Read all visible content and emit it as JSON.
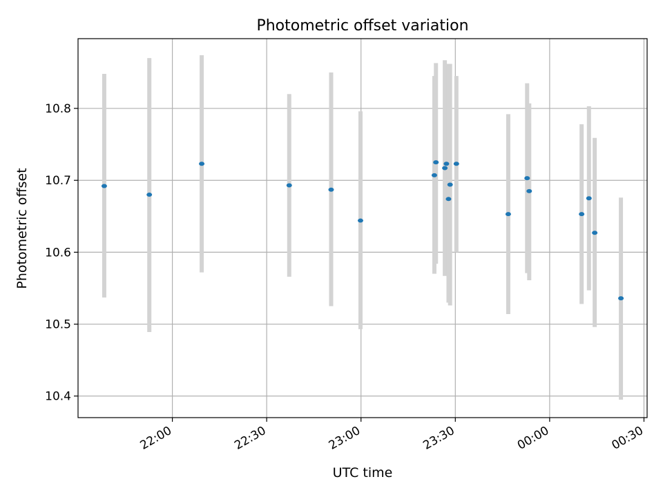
{
  "colors": {
    "point": "#1f77b4",
    "errorbar": "#d3d3d3",
    "grid": "#b0b0b0",
    "frame": "#000000"
  },
  "chart_data": {
    "type": "scatter",
    "title": "Photometric offset variation",
    "xlabel": "UTC time",
    "ylabel": "Photometric offset",
    "grid": true,
    "xlim": [
      "21:30:00",
      "00:31:00"
    ],
    "ylim": [
      10.37,
      10.897
    ],
    "x_ticks": [
      "22:00",
      "22:30",
      "23:00",
      "23:30",
      "00:00",
      "00:30"
    ],
    "y_ticks": [
      "10.4",
      "10.5",
      "10.6",
      "10.7",
      "10.8"
    ],
    "y_tick_values": [
      10.4,
      10.5,
      10.6,
      10.7,
      10.8
    ],
    "points": [
      {
        "time": "21:38:20",
        "y": 10.692,
        "ylo": 10.537,
        "yhi": 10.848
      },
      {
        "time": "21:52:40",
        "y": 10.68,
        "ylo": 10.489,
        "yhi": 10.87
      },
      {
        "time": "22:09:20",
        "y": 10.723,
        "ylo": 10.572,
        "yhi": 10.874
      },
      {
        "time": "22:37:10",
        "y": 10.693,
        "ylo": 10.566,
        "yhi": 10.82
      },
      {
        "time": "22:50:30",
        "y": 10.687,
        "ylo": 10.525,
        "yhi": 10.85
      },
      {
        "time": "22:59:50",
        "y": 10.644,
        "ylo": 10.493,
        "yhi": 10.796
      },
      {
        "time": "23:23:20",
        "y": 10.707,
        "ylo": 10.57,
        "yhi": 10.845
      },
      {
        "time": "23:23:50",
        "y": 10.725,
        "ylo": 10.584,
        "yhi": 10.863
      },
      {
        "time": "23:26:40",
        "y": 10.717,
        "ylo": 10.567,
        "yhi": 10.867
      },
      {
        "time": "23:27:10",
        "y": 10.723,
        "ylo": 10.585,
        "yhi": 10.862
      },
      {
        "time": "23:27:50",
        "y": 10.674,
        "ylo": 10.53,
        "yhi": 10.86
      },
      {
        "time": "23:28:20",
        "y": 10.694,
        "ylo": 10.526,
        "yhi": 10.862
      },
      {
        "time": "23:30:20",
        "y": 10.723,
        "ylo": 10.6,
        "yhi": 10.845
      },
      {
        "time": "23:46:50",
        "y": 10.653,
        "ylo": 10.514,
        "yhi": 10.792
      },
      {
        "time": "23:52:50",
        "y": 10.703,
        "ylo": 10.571,
        "yhi": 10.835
      },
      {
        "time": "23:53:30",
        "y": 10.685,
        "ylo": 10.561,
        "yhi": 10.807
      },
      {
        "time": "00:10:10",
        "y": 10.653,
        "ylo": 10.528,
        "yhi": 10.778
      },
      {
        "time": "00:12:30",
        "y": 10.675,
        "ylo": 10.547,
        "yhi": 10.803
      },
      {
        "time": "00:14:20",
        "y": 10.627,
        "ylo": 10.496,
        "yhi": 10.759
      },
      {
        "time": "00:22:40",
        "y": 10.536,
        "ylo": 10.395,
        "yhi": 10.676
      }
    ]
  }
}
